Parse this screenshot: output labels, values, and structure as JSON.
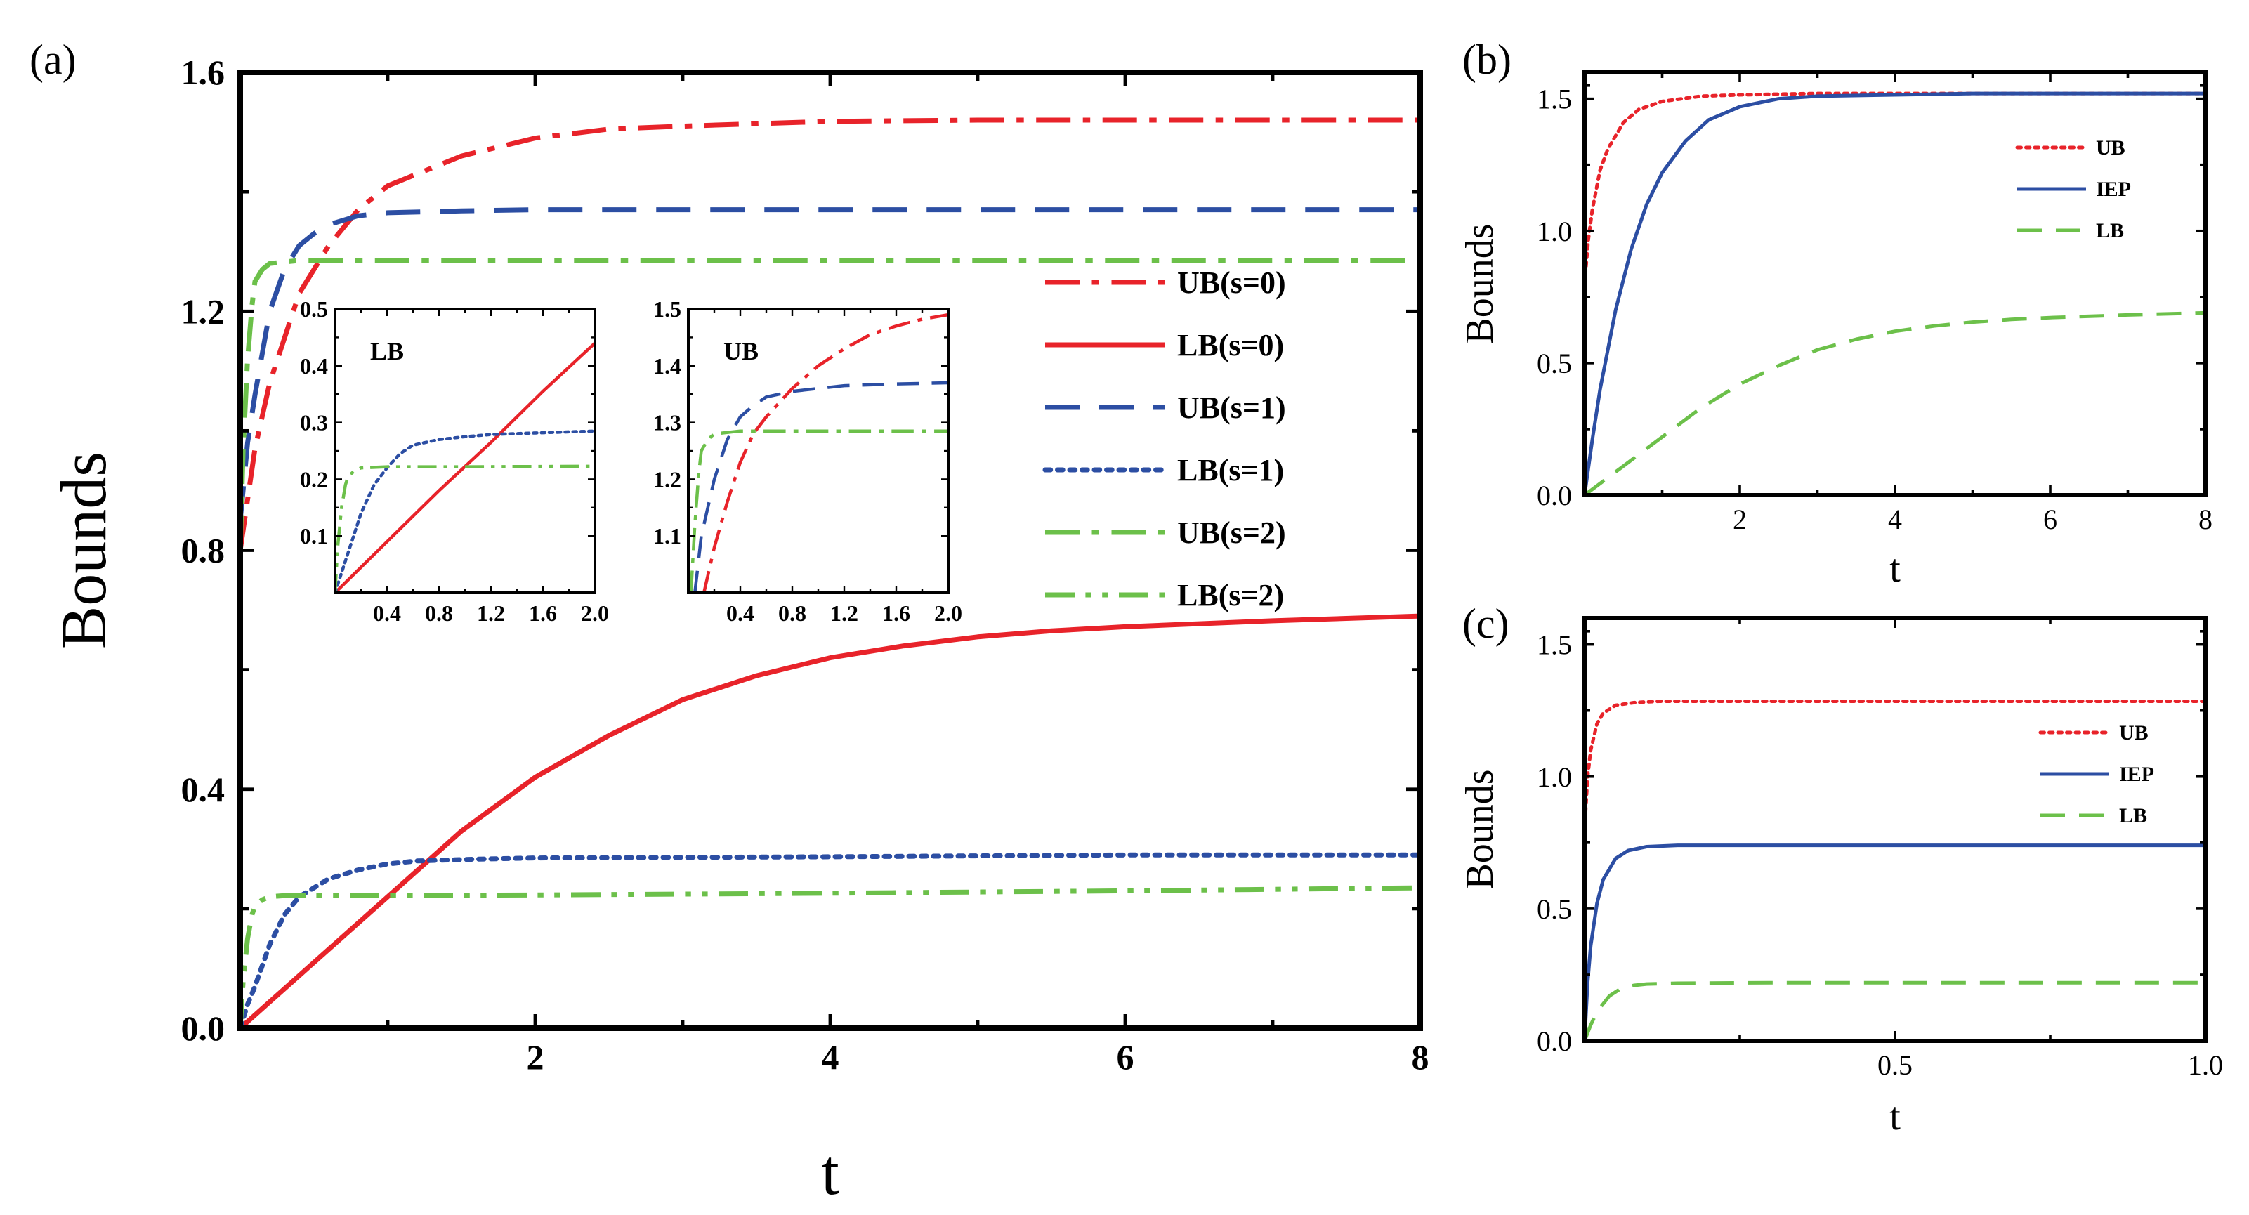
{
  "panels": {
    "a": {
      "label": "(a)"
    },
    "b": {
      "label": "(b)"
    },
    "c": {
      "label": "(c)"
    }
  },
  "colors": {
    "red": "#e8232a",
    "blue": "#2c4ea3",
    "green": "#6cc04a",
    "axis": "#000000"
  },
  "chart_data": [
    {
      "id": "a",
      "type": "line",
      "xlabel": "t",
      "ylabel": "Bounds",
      "xlim": [
        0,
        8
      ],
      "ylim": [
        0,
        1.6
      ],
      "xticks": [
        {
          "v": 2,
          "label": "2"
        },
        {
          "v": 4,
          "label": "4"
        },
        {
          "v": 6,
          "label": "6"
        },
        {
          "v": 8,
          "label": "8"
        }
      ],
      "yticks": [
        {
          "v": 0,
          "label": "0.0"
        },
        {
          "v": 0.4,
          "label": "0.4"
        },
        {
          "v": 0.8,
          "label": "0.8"
        },
        {
          "v": 1.2,
          "label": "1.2"
        },
        {
          "v": 1.6,
          "label": "1.6"
        }
      ],
      "legend_position": "right",
      "series": [
        {
          "name": "UB(s=0)",
          "color": "#e8232a",
          "style": "dashdot",
          "x": [
            0,
            0.1,
            0.2,
            0.4,
            0.6,
            0.8,
            1.0,
            1.5,
            2.0,
            2.5,
            3.0,
            4.0,
            5.0,
            6.0,
            7.0,
            8.0
          ],
          "y": [
            0.8,
            0.97,
            1.08,
            1.23,
            1.31,
            1.37,
            1.41,
            1.46,
            1.49,
            1.505,
            1.51,
            1.518,
            1.52,
            1.52,
            1.52,
            1.52
          ]
        },
        {
          "name": "LB(s=0)",
          "color": "#e8232a",
          "style": "solid",
          "x": [
            0,
            0.5,
            1.0,
            1.5,
            2.0,
            2.5,
            3.0,
            3.5,
            4.0,
            4.5,
            5.0,
            5.5,
            6.0,
            7.0,
            8.0
          ],
          "y": [
            0,
            0.11,
            0.22,
            0.33,
            0.42,
            0.49,
            0.55,
            0.59,
            0.62,
            0.64,
            0.655,
            0.665,
            0.672,
            0.682,
            0.69
          ]
        },
        {
          "name": "UB(s=1)",
          "color": "#2c4ea3",
          "style": "dash",
          "x": [
            0,
            0.05,
            0.1,
            0.2,
            0.3,
            0.4,
            0.5,
            0.6,
            0.8,
            1.0,
            1.5,
            2.0,
            4.0,
            6.0,
            8.0
          ],
          "y": [
            0.85,
            0.98,
            1.06,
            1.2,
            1.27,
            1.31,
            1.33,
            1.345,
            1.36,
            1.365,
            1.368,
            1.37,
            1.37,
            1.37,
            1.37
          ]
        },
        {
          "name": "LB(s=1)",
          "color": "#2c4ea3",
          "style": "dot",
          "x": [
            0,
            0.05,
            0.1,
            0.2,
            0.3,
            0.4,
            0.6,
            0.8,
            1.0,
            1.2,
            1.6,
            2.0,
            4.0,
            6.0,
            8.0
          ],
          "y": [
            0,
            0.04,
            0.07,
            0.14,
            0.19,
            0.22,
            0.25,
            0.265,
            0.275,
            0.28,
            0.283,
            0.285,
            0.287,
            0.29,
            0.29
          ]
        },
        {
          "name": "UB(s=2)",
          "color": "#6cc04a",
          "style": "dashdot",
          "x": [
            0,
            0.02,
            0.05,
            0.08,
            0.1,
            0.15,
            0.2,
            0.4,
            1.0,
            2.0,
            4.0,
            6.0,
            8.0
          ],
          "y": [
            0.8,
            0.97,
            1.12,
            1.21,
            1.25,
            1.27,
            1.28,
            1.285,
            1.285,
            1.285,
            1.285,
            1.285,
            1.285
          ]
        },
        {
          "name": "LB(s=2)",
          "color": "#6cc04a",
          "style": "dashdotdot",
          "x": [
            0,
            0.02,
            0.05,
            0.08,
            0.1,
            0.15,
            0.2,
            0.3,
            1.0,
            2.0,
            4.0,
            6.0,
            8.0
          ],
          "y": [
            0,
            0.08,
            0.15,
            0.19,
            0.205,
            0.215,
            0.22,
            0.222,
            0.222,
            0.223,
            0.226,
            0.23,
            0.235
          ]
        }
      ],
      "insets": [
        {
          "title": "LB",
          "xlim": [
            0,
            2.0
          ],
          "ylim": [
            0,
            0.5
          ],
          "xticks": [
            {
              "v": 0.4,
              "label": "0.4"
            },
            {
              "v": 0.8,
              "label": "0.8"
            },
            {
              "v": 1.2,
              "label": "1.2"
            },
            {
              "v": 1.6,
              "label": "1.6"
            },
            {
              "v": 2.0,
              "label": "2.0"
            }
          ],
          "yticks": [
            {
              "v": 0.1,
              "label": "0.1"
            },
            {
              "v": 0.2,
              "label": "0.2"
            },
            {
              "v": 0.3,
              "label": "0.3"
            },
            {
              "v": 0.4,
              "label": "0.4"
            },
            {
              "v": 0.5,
              "label": "0.5"
            }
          ],
          "series": [
            {
              "color": "#e8232a",
              "style": "solid",
              "x": [
                0,
                0.4,
                0.8,
                1.2,
                1.6,
                2.0
              ],
              "y": [
                0,
                0.09,
                0.18,
                0.265,
                0.355,
                0.44
              ]
            },
            {
              "color": "#2c4ea3",
              "style": "dot",
              "x": [
                0,
                0.1,
                0.2,
                0.3,
                0.4,
                0.5,
                0.6,
                0.8,
                1.0,
                1.2,
                1.6,
                2.0
              ],
              "y": [
                0,
                0.07,
                0.14,
                0.19,
                0.22,
                0.245,
                0.26,
                0.27,
                0.275,
                0.279,
                0.282,
                0.285
              ]
            },
            {
              "color": "#6cc04a",
              "style": "dashdotdot",
              "x": [
                0,
                0.02,
                0.05,
                0.08,
                0.1,
                0.15,
                0.2,
                0.4,
                1.0,
                2.0
              ],
              "y": [
                0,
                0.08,
                0.15,
                0.19,
                0.205,
                0.215,
                0.22,
                0.222,
                0.222,
                0.223
              ]
            }
          ]
        },
        {
          "title": "UB",
          "xlim": [
            0,
            2.0
          ],
          "ylim": [
            1.0,
            1.5
          ],
          "xticks": [
            {
              "v": 0.4,
              "label": "0.4"
            },
            {
              "v": 0.8,
              "label": "0.8"
            },
            {
              "v": 1.2,
              "label": "1.2"
            },
            {
              "v": 1.6,
              "label": "1.6"
            },
            {
              "v": 2.0,
              "label": "2.0"
            }
          ],
          "yticks": [
            {
              "v": 1.1,
              "label": "1.1"
            },
            {
              "v": 1.2,
              "label": "1.2"
            },
            {
              "v": 1.3,
              "label": "1.3"
            },
            {
              "v": 1.4,
              "label": "1.4"
            },
            {
              "v": 1.5,
              "label": "1.5"
            }
          ],
          "series": [
            {
              "color": "#e8232a",
              "style": "dashdot",
              "x": [
                0.12,
                0.2,
                0.3,
                0.4,
                0.5,
                0.6,
                0.8,
                1.0,
                1.2,
                1.4,
                1.6,
                1.8,
                2.0
              ],
              "y": [
                1.0,
                1.08,
                1.16,
                1.23,
                1.28,
                1.31,
                1.36,
                1.4,
                1.43,
                1.455,
                1.47,
                1.482,
                1.49
              ]
            },
            {
              "color": "#2c4ea3",
              "style": "dash",
              "x": [
                0.05,
                0.1,
                0.2,
                0.3,
                0.4,
                0.5,
                0.6,
                0.8,
                1.0,
                1.2,
                1.6,
                2.0
              ],
              "y": [
                1.0,
                1.1,
                1.2,
                1.27,
                1.31,
                1.33,
                1.345,
                1.355,
                1.36,
                1.365,
                1.368,
                1.37
              ]
            },
            {
              "color": "#6cc04a",
              "style": "dashdot",
              "x": [
                0.02,
                0.05,
                0.08,
                0.1,
                0.15,
                0.2,
                0.4,
                1.0,
                2.0
              ],
              "y": [
                1.0,
                1.12,
                1.21,
                1.25,
                1.27,
                1.28,
                1.285,
                1.285,
                1.285
              ]
            }
          ]
        }
      ]
    },
    {
      "id": "b",
      "type": "line",
      "xlabel": "t",
      "ylabel": "Bounds",
      "xlim": [
        0,
        8
      ],
      "ylim": [
        0,
        1.6
      ],
      "xticks": [
        {
          "v": 2,
          "label": "2"
        },
        {
          "v": 4,
          "label": "4"
        },
        {
          "v": 6,
          "label": "6"
        },
        {
          "v": 8,
          "label": "8"
        }
      ],
      "yticks": [
        {
          "v": 0,
          "label": "0.0"
        },
        {
          "v": 0.5,
          "label": "0.5"
        },
        {
          "v": 1.0,
          "label": "1.0"
        },
        {
          "v": 1.5,
          "label": "1.5"
        }
      ],
      "legend_position": "top-right",
      "series": [
        {
          "name": "UB",
          "color": "#e8232a",
          "style": "dot",
          "x": [
            0,
            0.05,
            0.1,
            0.2,
            0.3,
            0.5,
            0.7,
            1.0,
            1.5,
            2.0,
            3.0,
            4.0,
            6.0,
            8.0
          ],
          "y": [
            0.8,
            0.97,
            1.08,
            1.23,
            1.31,
            1.41,
            1.46,
            1.49,
            1.51,
            1.515,
            1.52,
            1.52,
            1.52,
            1.52
          ]
        },
        {
          "name": "IEP",
          "color": "#2c4ea3",
          "style": "solid",
          "x": [
            0,
            0.1,
            0.2,
            0.4,
            0.6,
            0.8,
            1.0,
            1.3,
            1.6,
            2.0,
            2.5,
            3.0,
            4.0,
            5.0,
            6.0,
            8.0
          ],
          "y": [
            0,
            0.21,
            0.4,
            0.7,
            0.93,
            1.1,
            1.22,
            1.34,
            1.42,
            1.47,
            1.5,
            1.51,
            1.515,
            1.52,
            1.52,
            1.52
          ]
        },
        {
          "name": "LB",
          "color": "#6cc04a",
          "style": "dash",
          "x": [
            0,
            0.5,
            1.0,
            1.5,
            2.0,
            2.5,
            3.0,
            3.5,
            4.0,
            4.5,
            5.0,
            5.5,
            6.0,
            7.0,
            8.0
          ],
          "y": [
            0,
            0.11,
            0.22,
            0.33,
            0.42,
            0.49,
            0.55,
            0.59,
            0.62,
            0.64,
            0.655,
            0.665,
            0.672,
            0.682,
            0.69
          ]
        }
      ]
    },
    {
      "id": "c",
      "type": "line",
      "xlabel": "t",
      "ylabel": "Bounds",
      "xlim": [
        0,
        1.0
      ],
      "ylim": [
        0,
        1.6
      ],
      "xticks": [
        {
          "v": 0.5,
          "label": "0.5"
        },
        {
          "v": 1.0,
          "label": "1.0"
        }
      ],
      "yticks": [
        {
          "v": 0,
          "label": "0.0"
        },
        {
          "v": 0.5,
          "label": "0.5"
        },
        {
          "v": 1.0,
          "label": "1.0"
        },
        {
          "v": 1.5,
          "label": "1.5"
        }
      ],
      "legend_position": "top-right",
      "series": [
        {
          "name": "UB",
          "color": "#e8232a",
          "style": "dot",
          "x": [
            0,
            0.005,
            0.01,
            0.02,
            0.03,
            0.05,
            0.08,
            0.12,
            0.2,
            0.4,
            0.6,
            0.8,
            1.0
          ],
          "y": [
            0.8,
            1.0,
            1.1,
            1.2,
            1.24,
            1.27,
            1.28,
            1.285,
            1.285,
            1.285,
            1.285,
            1.285,
            1.285
          ]
        },
        {
          "name": "IEP",
          "color": "#2c4ea3",
          "style": "solid",
          "x": [
            0,
            0.005,
            0.01,
            0.02,
            0.03,
            0.05,
            0.07,
            0.1,
            0.15,
            0.2,
            0.3,
            0.5,
            0.7,
            1.0
          ],
          "y": [
            0,
            0.22,
            0.36,
            0.52,
            0.61,
            0.69,
            0.72,
            0.735,
            0.74,
            0.74,
            0.74,
            0.74,
            0.74,
            0.74
          ]
        },
        {
          "name": "LB",
          "color": "#6cc04a",
          "style": "dash",
          "x": [
            0,
            0.01,
            0.02,
            0.04,
            0.06,
            0.08,
            0.1,
            0.15,
            0.3,
            0.5,
            0.7,
            1.0
          ],
          "y": [
            0,
            0.06,
            0.11,
            0.17,
            0.2,
            0.21,
            0.215,
            0.218,
            0.22,
            0.22,
            0.22,
            0.22
          ]
        }
      ]
    }
  ]
}
